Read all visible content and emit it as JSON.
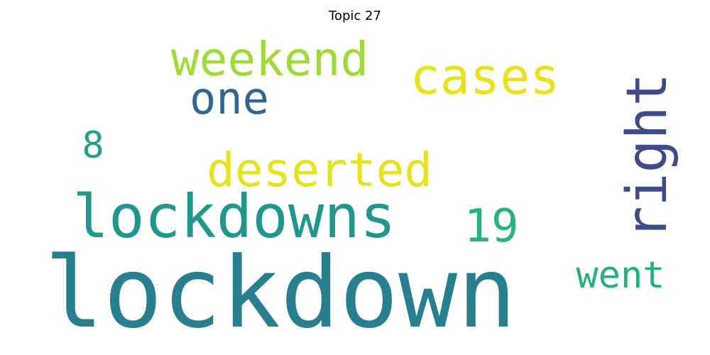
{
  "title": "Topic 27",
  "words": [
    {
      "text": "lockdown",
      "color": "#2a7f8e"
    },
    {
      "text": "lockdowns",
      "color": "#21968b"
    },
    {
      "text": "deserted",
      "color": "#e6e21d"
    },
    {
      "text": "cases",
      "color": "#e7e21c"
    },
    {
      "text": "weekend",
      "color": "#a0da39"
    },
    {
      "text": "one",
      "color": "#31678e"
    },
    {
      "text": "right",
      "color": "#404a89"
    },
    {
      "text": "19",
      "color": "#2bb17c"
    },
    {
      "text": "went",
      "color": "#27ae7e"
    },
    {
      "text": "8",
      "color": "#26a085"
    }
  ]
}
